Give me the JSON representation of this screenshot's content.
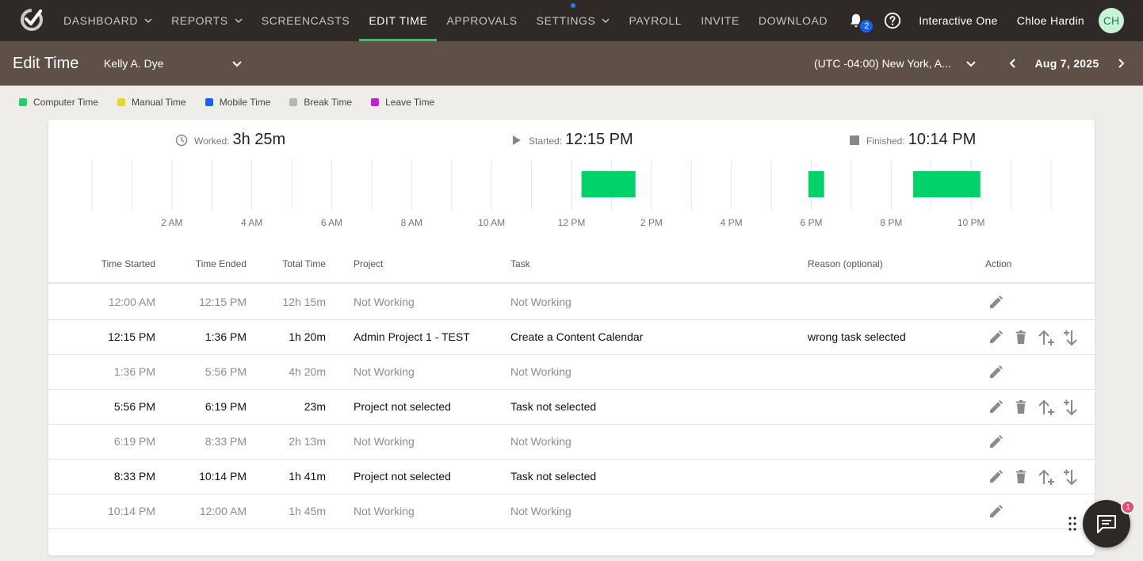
{
  "nav": {
    "items": [
      {
        "label": "DASHBOARD",
        "chevron": true,
        "active": false,
        "dot": false
      },
      {
        "label": "REPORTS",
        "chevron": true,
        "active": false,
        "dot": false
      },
      {
        "label": "SCREENCASTS",
        "chevron": false,
        "active": false,
        "dot": false
      },
      {
        "label": "EDIT TIME",
        "chevron": false,
        "active": true,
        "dot": false
      },
      {
        "label": "APPROVALS",
        "chevron": false,
        "active": false,
        "dot": false
      },
      {
        "label": "SETTINGS",
        "chevron": true,
        "active": false,
        "dot": true
      },
      {
        "label": "PAYROLL",
        "chevron": false,
        "active": false,
        "dot": false
      },
      {
        "label": "INVITE",
        "chevron": false,
        "active": false,
        "dot": false
      },
      {
        "label": "DOWNLOAD",
        "chevron": false,
        "active": false,
        "dot": false
      }
    ],
    "notifications": "2",
    "company": "Interactive One",
    "user_name": "Chloe Hardin",
    "avatar_initials": "CH"
  },
  "header": {
    "title": "Edit Time",
    "user_select": "Kelly A. Dye",
    "timezone": "(UTC -04:00) New York, A...",
    "date": "Aug 7, 2025"
  },
  "legend": [
    {
      "label": "Computer Time",
      "color": "#1fcf6d"
    },
    {
      "label": "Manual Time",
      "color": "#e8d42a"
    },
    {
      "label": "Mobile Time",
      "color": "#1565e8"
    },
    {
      "label": "Break Time",
      "color": "#b5b5b5"
    },
    {
      "label": "Leave Time",
      "color": "#c21fd6"
    }
  ],
  "summary": {
    "worked_label": "Worked:",
    "worked": "3h 25m",
    "started_label": "Started:",
    "started": "12:15 PM",
    "finished_label": "Finished:",
    "finished": "10:14 PM"
  },
  "timeline": {
    "tick_labels": [
      "2 AM",
      "4 AM",
      "6 AM",
      "8 AM",
      "10 AM",
      "12 PM",
      "2 PM",
      "4 PM",
      "6 PM",
      "8 PM",
      "10 PM"
    ],
    "hours": 24,
    "blocks": [
      {
        "start_hour": 12.25,
        "end_hour": 13.6,
        "color": "#00d26a"
      },
      {
        "start_hour": 17.93,
        "end_hour": 18.32,
        "color": "#00d26a"
      },
      {
        "start_hour": 20.55,
        "end_hour": 22.23,
        "color": "#00d26a"
      }
    ]
  },
  "table": {
    "headers": {
      "start": "Time Started",
      "end": "Time Ended",
      "total": "Total Time",
      "project": "Project",
      "task": "Task",
      "reason": "Reason (optional)",
      "action": "Action"
    },
    "rows": [
      {
        "start": "12:00 AM",
        "end": "12:15 PM",
        "total": "12h 15m",
        "project": "Not Working",
        "task": "Not Working",
        "reason": "",
        "working": false
      },
      {
        "start": "12:15 PM",
        "end": "1:36 PM",
        "total": "1h 20m",
        "project": "Admin Project 1 - TEST",
        "task": "Create a Content Calendar",
        "reason": "wrong task selected",
        "working": true
      },
      {
        "start": "1:36 PM",
        "end": "5:56 PM",
        "total": "4h 20m",
        "project": "Not Working",
        "task": "Not Working",
        "reason": "",
        "working": false
      },
      {
        "start": "5:56 PM",
        "end": "6:19 PM",
        "total": "23m",
        "project": "Project not selected",
        "task": "Task not selected",
        "reason": "",
        "working": true
      },
      {
        "start": "6:19 PM",
        "end": "8:33 PM",
        "total": "2h 13m",
        "project": "Not Working",
        "task": "Not Working",
        "reason": "",
        "working": false
      },
      {
        "start": "8:33 PM",
        "end": "10:14 PM",
        "total": "1h 41m",
        "project": "Project not selected",
        "task": "Task not selected",
        "reason": "",
        "working": true
      },
      {
        "start": "10:14 PM",
        "end": "12:00 AM",
        "total": "1h 45m",
        "project": "Not Working",
        "task": "Not Working",
        "reason": "",
        "working": false
      }
    ]
  },
  "chat": {
    "badge": "1"
  }
}
